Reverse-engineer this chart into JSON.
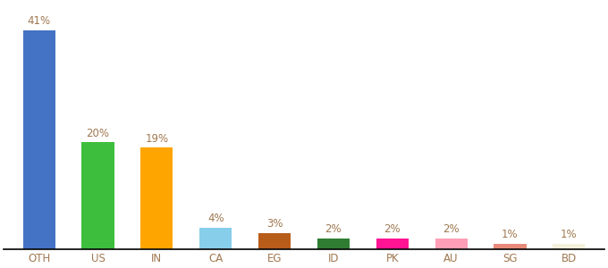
{
  "categories": [
    "OTH",
    "US",
    "IN",
    "CA",
    "EG",
    "ID",
    "PK",
    "AU",
    "SG",
    "BD"
  ],
  "values": [
    41,
    20,
    19,
    4,
    3,
    2,
    2,
    2,
    1,
    1
  ],
  "labels": [
    "41%",
    "20%",
    "19%",
    "4%",
    "3%",
    "2%",
    "2%",
    "2%",
    "1%",
    "1%"
  ],
  "bar_colors": [
    "#4472C4",
    "#3DBE3D",
    "#FFA500",
    "#87CEEB",
    "#B85C1A",
    "#2E7D32",
    "#FF1493",
    "#FF9EB5",
    "#E8897A",
    "#F5F0DC"
  ],
  "background_color": "#ffffff",
  "label_color": "#A07850",
  "label_fontsize": 8.5,
  "xtick_color": "#A07850",
  "xtick_fontsize": 8.5
}
